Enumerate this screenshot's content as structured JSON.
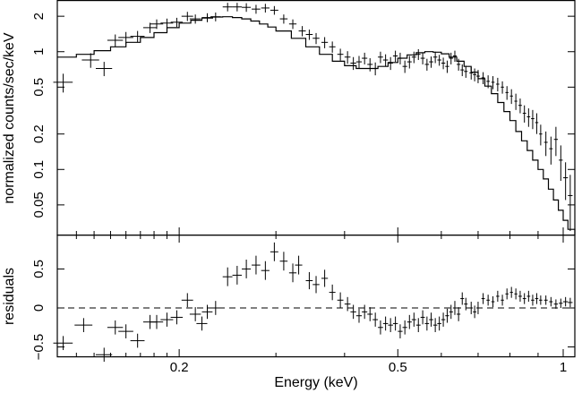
{
  "chart_data": {
    "type": "scatter",
    "title": "",
    "xlabel": "Energy (keV)",
    "xscale": "log",
    "xlim": [
      0.12,
      1.05
    ],
    "xticks": [
      {
        "v": 0.2,
        "label": "0.2"
      },
      {
        "v": 0.5,
        "label": "0.5"
      },
      {
        "v": 1,
        "label": "1"
      }
    ],
    "top_panel": {
      "ylabel": "normalized counts/sec/keV",
      "yscale": "log",
      "ylim": [
        0.028,
        2.7
      ],
      "yticks": [
        {
          "v": 0.05,
          "label": "0.05"
        },
        {
          "v": 0.1,
          "label": "0.1"
        },
        {
          "v": 0.2,
          "label": "0.2"
        },
        {
          "v": 0.5,
          "label": "0.5"
        },
        {
          "v": 1,
          "label": "1"
        },
        {
          "v": 2,
          "label": "2"
        }
      ],
      "data": [
        [
          0.123,
          0.55,
          0.005,
          0.1
        ],
        [
          0.138,
          0.85,
          0.005,
          0.12
        ],
        [
          0.146,
          0.72,
          0.005,
          0.1
        ],
        [
          0.153,
          1.25,
          0.005,
          0.15
        ],
        [
          0.16,
          1.32,
          0.005,
          0.15
        ],
        [
          0.168,
          1.35,
          0.005,
          0.15
        ],
        [
          0.177,
          1.6,
          0.005,
          0.16
        ],
        [
          0.182,
          1.72,
          0.005,
          0.16
        ],
        [
          0.19,
          1.75,
          0.005,
          0.16
        ],
        [
          0.198,
          1.78,
          0.005,
          0.16
        ],
        [
          0.207,
          2.0,
          0.005,
          0.18
        ],
        [
          0.214,
          1.9,
          0.005,
          0.17
        ],
        [
          0.225,
          1.95,
          0.005,
          0.17
        ],
        [
          0.233,
          1.98,
          0.005,
          0.17
        ],
        [
          0.245,
          2.4,
          0.005,
          0.2
        ],
        [
          0.255,
          2.4,
          0.005,
          0.2
        ],
        [
          0.265,
          2.38,
          0.005,
          0.2
        ],
        [
          0.276,
          2.3,
          0.005,
          0.2
        ],
        [
          0.287,
          2.35,
          0.005,
          0.2
        ],
        [
          0.298,
          2.25,
          0.005,
          0.19
        ],
        [
          0.31,
          1.9,
          0.005,
          0.17
        ],
        [
          0.322,
          1.72,
          0.005,
          0.16
        ],
        [
          0.335,
          1.5,
          0.005,
          0.15
        ],
        [
          0.345,
          1.4,
          0.005,
          0.14
        ],
        [
          0.355,
          1.3,
          0.005,
          0.14
        ],
        [
          0.368,
          1.2,
          0.005,
          0.13
        ],
        [
          0.38,
          1.1,
          0.005,
          0.12
        ],
        [
          0.393,
          0.95,
          0.005,
          0.11
        ],
        [
          0.405,
          0.9,
          0.005,
          0.11
        ],
        [
          0.415,
          0.8,
          0.005,
          0.1
        ],
        [
          0.425,
          0.82,
          0.005,
          0.1
        ],
        [
          0.435,
          0.88,
          0.005,
          0.1
        ],
        [
          0.445,
          0.78,
          0.005,
          0.1
        ],
        [
          0.455,
          0.72,
          0.005,
          0.09
        ],
        [
          0.465,
          0.9,
          0.005,
          0.1
        ],
        [
          0.475,
          0.85,
          0.005,
          0.1
        ],
        [
          0.485,
          0.8,
          0.005,
          0.1
        ],
        [
          0.495,
          0.92,
          0.005,
          0.1
        ],
        [
          0.505,
          0.88,
          0.005,
          0.1
        ],
        [
          0.515,
          0.75,
          0.005,
          0.09
        ],
        [
          0.525,
          0.82,
          0.005,
          0.1
        ],
        [
          0.535,
          0.9,
          0.005,
          0.1
        ],
        [
          0.545,
          0.95,
          0.005,
          0.1
        ],
        [
          0.555,
          0.88,
          0.005,
          0.1
        ],
        [
          0.565,
          0.78,
          0.005,
          0.09
        ],
        [
          0.575,
          0.82,
          0.005,
          0.09
        ],
        [
          0.585,
          0.9,
          0.005,
          0.1
        ],
        [
          0.595,
          0.85,
          0.005,
          0.09
        ],
        [
          0.605,
          0.8,
          0.005,
          0.09
        ],
        [
          0.615,
          0.75,
          0.005,
          0.09
        ],
        [
          0.625,
          0.88,
          0.005,
          0.1
        ],
        [
          0.635,
          0.92,
          0.005,
          0.1
        ],
        [
          0.645,
          0.78,
          0.005,
          0.09
        ],
        [
          0.655,
          0.7,
          0.005,
          0.08
        ],
        [
          0.665,
          0.68,
          0.005,
          0.08
        ],
        [
          0.68,
          0.66,
          0.005,
          0.08
        ],
        [
          0.69,
          0.64,
          0.005,
          0.08
        ],
        [
          0.7,
          0.62,
          0.005,
          0.08
        ],
        [
          0.715,
          0.6,
          0.005,
          0.07
        ],
        [
          0.73,
          0.56,
          0.005,
          0.07
        ],
        [
          0.745,
          0.55,
          0.005,
          0.07
        ],
        [
          0.76,
          0.53,
          0.005,
          0.07
        ],
        [
          0.775,
          0.5,
          0.005,
          0.06
        ],
        [
          0.79,
          0.45,
          0.005,
          0.06
        ],
        [
          0.805,
          0.42,
          0.005,
          0.06
        ],
        [
          0.82,
          0.38,
          0.005,
          0.06
        ],
        [
          0.835,
          0.35,
          0.006,
          0.05
        ],
        [
          0.85,
          0.3,
          0.006,
          0.05
        ],
        [
          0.865,
          0.28,
          0.006,
          0.05
        ],
        [
          0.88,
          0.27,
          0.006,
          0.05
        ],
        [
          0.895,
          0.25,
          0.006,
          0.05
        ],
        [
          0.91,
          0.2,
          0.006,
          0.04
        ],
        [
          0.93,
          0.17,
          0.007,
          0.04
        ],
        [
          0.95,
          0.15,
          0.007,
          0.04
        ],
        [
          0.97,
          0.18,
          0.008,
          0.05
        ],
        [
          0.99,
          0.12,
          0.008,
          0.04
        ],
        [
          1.01,
          0.085,
          0.01,
          0.03
        ],
        [
          1.03,
          0.06,
          0.01,
          0.03
        ]
      ],
      "model": [
        [
          0.12,
          0.9
        ],
        [
          0.13,
          0.95
        ],
        [
          0.14,
          1.02
        ],
        [
          0.15,
          1.1
        ],
        [
          0.16,
          1.2
        ],
        [
          0.17,
          1.32
        ],
        [
          0.18,
          1.45
        ],
        [
          0.19,
          1.6
        ],
        [
          0.2,
          1.75
        ],
        [
          0.21,
          1.85
        ],
        [
          0.22,
          1.93
        ],
        [
          0.23,
          1.97
        ],
        [
          0.24,
          1.98
        ],
        [
          0.25,
          1.95
        ],
        [
          0.26,
          1.9
        ],
        [
          0.27,
          1.82
        ],
        [
          0.28,
          1.72
        ],
        [
          0.29,
          1.62
        ],
        [
          0.3,
          1.5
        ],
        [
          0.32,
          1.3
        ],
        [
          0.34,
          1.1
        ],
        [
          0.36,
          0.95
        ],
        [
          0.38,
          0.83
        ],
        [
          0.4,
          0.76
        ],
        [
          0.42,
          0.72
        ],
        [
          0.44,
          0.72
        ],
        [
          0.46,
          0.75
        ],
        [
          0.48,
          0.81
        ],
        [
          0.5,
          0.88
        ],
        [
          0.52,
          0.94
        ],
        [
          0.54,
          0.98
        ],
        [
          0.56,
          1.0
        ],
        [
          0.58,
          0.99
        ],
        [
          0.6,
          0.96
        ],
        [
          0.62,
          0.9
        ],
        [
          0.64,
          0.83
        ],
        [
          0.66,
          0.75
        ],
        [
          0.68,
          0.67
        ],
        [
          0.7,
          0.59
        ],
        [
          0.72,
          0.51
        ],
        [
          0.74,
          0.44
        ],
        [
          0.76,
          0.37
        ],
        [
          0.78,
          0.31
        ],
        [
          0.8,
          0.26
        ],
        [
          0.82,
          0.21
        ],
        [
          0.84,
          0.175
        ],
        [
          0.86,
          0.145
        ],
        [
          0.88,
          0.12
        ],
        [
          0.9,
          0.1
        ],
        [
          0.92,
          0.083
        ],
        [
          0.94,
          0.068
        ],
        [
          0.96,
          0.055
        ],
        [
          0.98,
          0.045
        ],
        [
          1.0,
          0.037
        ],
        [
          1.02,
          0.031
        ],
        [
          1.05,
          0.028
        ]
      ]
    },
    "bottom_panel": {
      "ylabel": "residuals",
      "ylim": [
        -0.62,
        0.93
      ],
      "yticks": [
        {
          "v": -0.5,
          "label": "−0.5"
        },
        {
          "v": 0,
          "label": "0"
        },
        {
          "v": 0.5,
          "label": "0.5"
        }
      ],
      "reference_line": 0,
      "data": [
        [
          0.123,
          -0.45,
          0.005,
          0.09
        ],
        [
          0.134,
          -0.22,
          0.005,
          0.09
        ],
        [
          0.146,
          -0.6,
          0.005,
          0.09
        ],
        [
          0.153,
          -0.25,
          0.005,
          0.09
        ],
        [
          0.16,
          -0.3,
          0.005,
          0.09
        ],
        [
          0.168,
          -0.42,
          0.005,
          0.09
        ],
        [
          0.177,
          -0.18,
          0.005,
          0.09
        ],
        [
          0.182,
          -0.18,
          0.005,
          0.09
        ],
        [
          0.19,
          -0.15,
          0.005,
          0.09
        ],
        [
          0.198,
          -0.12,
          0.005,
          0.09
        ],
        [
          0.207,
          0.1,
          0.005,
          0.09
        ],
        [
          0.214,
          -0.08,
          0.005,
          0.09
        ],
        [
          0.22,
          -0.2,
          0.005,
          0.09
        ],
        [
          0.225,
          -0.05,
          0.005,
          0.09
        ],
        [
          0.233,
          0.0,
          0.005,
          0.09
        ],
        [
          0.245,
          0.4,
          0.005,
          0.12
        ],
        [
          0.255,
          0.42,
          0.005,
          0.12
        ],
        [
          0.265,
          0.5,
          0.005,
          0.12
        ],
        [
          0.276,
          0.55,
          0.005,
          0.12
        ],
        [
          0.287,
          0.48,
          0.005,
          0.12
        ],
        [
          0.298,
          0.72,
          0.005,
          0.12
        ],
        [
          0.31,
          0.6,
          0.005,
          0.12
        ],
        [
          0.322,
          0.45,
          0.005,
          0.12
        ],
        [
          0.33,
          0.55,
          0.005,
          0.12
        ],
        [
          0.345,
          0.35,
          0.005,
          0.11
        ],
        [
          0.355,
          0.3,
          0.005,
          0.11
        ],
        [
          0.368,
          0.38,
          0.005,
          0.11
        ],
        [
          0.38,
          0.2,
          0.005,
          0.1
        ],
        [
          0.393,
          0.1,
          0.005,
          0.1
        ],
        [
          0.405,
          0.05,
          0.005,
          0.09
        ],
        [
          0.415,
          -0.05,
          0.005,
          0.09
        ],
        [
          0.425,
          -0.1,
          0.005,
          0.09
        ],
        [
          0.435,
          -0.05,
          0.005,
          0.09
        ],
        [
          0.445,
          -0.08,
          0.005,
          0.09
        ],
        [
          0.455,
          -0.15,
          0.005,
          0.09
        ],
        [
          0.465,
          -0.25,
          0.005,
          0.09
        ],
        [
          0.475,
          -0.2,
          0.005,
          0.09
        ],
        [
          0.485,
          -0.22,
          0.005,
          0.09
        ],
        [
          0.495,
          -0.2,
          0.005,
          0.09
        ],
        [
          0.505,
          -0.3,
          0.005,
          0.09
        ],
        [
          0.515,
          -0.25,
          0.005,
          0.09
        ],
        [
          0.525,
          -0.18,
          0.005,
          0.09
        ],
        [
          0.535,
          -0.15,
          0.005,
          0.09
        ],
        [
          0.545,
          -0.22,
          0.005,
          0.09
        ],
        [
          0.555,
          -0.12,
          0.005,
          0.09
        ],
        [
          0.565,
          -0.2,
          0.005,
          0.09
        ],
        [
          0.575,
          -0.15,
          0.005,
          0.09
        ],
        [
          0.585,
          -0.22,
          0.005,
          0.09
        ],
        [
          0.595,
          -0.2,
          0.005,
          0.09
        ],
        [
          0.605,
          -0.15,
          0.005,
          0.09
        ],
        [
          0.615,
          -0.1,
          0.005,
          0.09
        ],
        [
          0.625,
          -0.05,
          0.005,
          0.09
        ],
        [
          0.635,
          0.0,
          0.005,
          0.09
        ],
        [
          0.645,
          -0.08,
          0.005,
          0.09
        ],
        [
          0.655,
          0.12,
          0.005,
          0.08
        ],
        [
          0.665,
          0.05,
          0.005,
          0.08
        ],
        [
          0.68,
          0.0,
          0.005,
          0.08
        ],
        [
          0.69,
          -0.05,
          0.005,
          0.08
        ],
        [
          0.7,
          0.0,
          0.005,
          0.08
        ],
        [
          0.715,
          0.12,
          0.005,
          0.07
        ],
        [
          0.73,
          0.1,
          0.005,
          0.07
        ],
        [
          0.745,
          0.08,
          0.005,
          0.07
        ],
        [
          0.76,
          0.15,
          0.005,
          0.07
        ],
        [
          0.775,
          0.1,
          0.005,
          0.07
        ],
        [
          0.79,
          0.18,
          0.005,
          0.07
        ],
        [
          0.805,
          0.2,
          0.005,
          0.07
        ],
        [
          0.82,
          0.18,
          0.005,
          0.07
        ],
        [
          0.835,
          0.15,
          0.006,
          0.07
        ],
        [
          0.85,
          0.12,
          0.006,
          0.07
        ],
        [
          0.865,
          0.15,
          0.006,
          0.07
        ],
        [
          0.88,
          0.1,
          0.006,
          0.07
        ],
        [
          0.895,
          0.12,
          0.006,
          0.07
        ],
        [
          0.91,
          0.1,
          0.006,
          0.06
        ],
        [
          0.93,
          0.1,
          0.007,
          0.06
        ],
        [
          0.95,
          0.08,
          0.007,
          0.06
        ],
        [
          0.97,
          0.05,
          0.008,
          0.06
        ],
        [
          0.99,
          0.06,
          0.008,
          0.06
        ],
        [
          1.01,
          0.08,
          0.01,
          0.06
        ],
        [
          1.03,
          0.07,
          0.01,
          0.06
        ]
      ]
    }
  }
}
